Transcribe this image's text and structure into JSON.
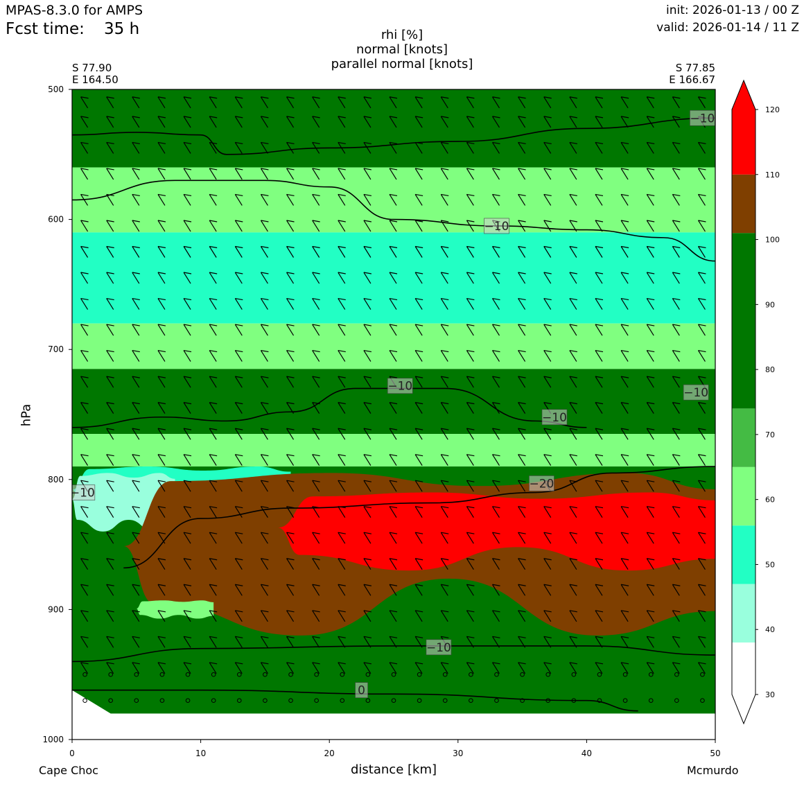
{
  "header": {
    "model": "MPAS-8.3.0 for AMPS",
    "fcst_label": "Fcst time:",
    "fcst_value": "35 h",
    "init": "init: 2026-01-13 / 00 Z",
    "valid": "valid: 2026-01-14 / 11 Z"
  },
  "titles": [
    "rhi [%]",
    "normal [knots]",
    "parallel normal [knots]"
  ],
  "endpoints": {
    "left_lat": "S 77.90",
    "left_lon": "E 164.50",
    "right_lat": "S 77.85",
    "right_lon": "E 166.67",
    "left_name": "Cape Choc",
    "right_name": "Mcmurdo"
  },
  "chart_data": {
    "type": "heatmap",
    "title": "rhi [%]",
    "xlabel": "distance [km]",
    "ylabel": "hPa",
    "xlim": [
      0,
      50
    ],
    "ylim": [
      1000,
      500
    ],
    "x_ticks": [
      "0",
      "10",
      "20",
      "30",
      "40",
      "50"
    ],
    "y_ticks": [
      "500",
      "600",
      "700",
      "800",
      "900",
      "1000"
    ],
    "colorbar": {
      "ticks": [
        "30",
        "40",
        "50",
        "60",
        "70",
        "80",
        "90",
        "100",
        "110",
        "120"
      ],
      "levels": [
        {
          "from": 30,
          "to": 38,
          "color": "#ffffff"
        },
        {
          "from": 38,
          "to": 47,
          "color": "#99ffdd"
        },
        {
          "from": 47,
          "to": 56,
          "color": "#22ffc4"
        },
        {
          "from": 56,
          "to": 65,
          "color": "#80ff80"
        },
        {
          "from": 65,
          "to": 74,
          "color": "#44bb44"
        },
        {
          "from": 74,
          "to": 101,
          "color": "#007700"
        },
        {
          "from": 101,
          "to": 110,
          "color": "#7f3f00"
        },
        {
          "from": 110,
          "to": 120,
          "color": "#ff0000"
        }
      ],
      "extend": "both"
    },
    "rhi_bands": [
      {
        "color": "#007700",
        "top_hPa": 500,
        "bottom_hPa": 560
      },
      {
        "color": "#80ff80",
        "top_hPa": 560,
        "bottom_hPa": 610
      },
      {
        "color": "#22ffc4",
        "top_hPa": 610,
        "bottom_hPa": 680
      },
      {
        "color": "#80ff80",
        "top_hPa": 680,
        "bottom_hPa": 715
      },
      {
        "color": "#007700",
        "top_hPa": 715,
        "bottom_hPa": 765
      },
      {
        "color": "#80ff80",
        "top_hPa": 765,
        "bottom_hPa": 790
      },
      {
        "color": "#007700",
        "top_hPa": 790,
        "bottom_hPa": 980
      }
    ],
    "rhi_regions": [
      {
        "color": "#22ffc4",
        "x": [
          0,
          3,
          14,
          17
        ],
        "p": [
          810,
          790,
          790,
          800
        ],
        "extent": [
          0,
          17,
          790,
          830
        ]
      },
      {
        "color": "#99ffdd",
        "x": [
          0,
          8
        ],
        "p": [
          800,
          830
        ],
        "extent": [
          0,
          8,
          795,
          840
        ]
      },
      {
        "color": "#7f3f00",
        "x": [
          4,
          50
        ],
        "p": [
          805,
          920
        ],
        "extent": [
          4,
          50,
          795,
          920
        ]
      },
      {
        "color": "#ff0000",
        "x": [
          16,
          50
        ],
        "p": [
          810,
          870
        ],
        "extent": [
          16,
          50,
          810,
          870
        ]
      },
      {
        "color": "#80ff80",
        "x": [
          5,
          11
        ],
        "p": [
          893,
          905
        ],
        "extent": [
          5,
          11,
          893,
          907
        ]
      }
    ],
    "temperature_contours": [
      {
        "label": "−10",
        "x": [
          0,
          5,
          10,
          12,
          20,
          30,
          40,
          50
        ],
        "p": [
          535,
          533,
          535,
          550,
          545,
          540,
          530,
          522
        ]
      },
      {
        "label": "−10",
        "x": [
          0,
          8,
          15,
          20,
          25,
          33,
          40,
          46,
          50
        ],
        "p": [
          585,
          570,
          570,
          575,
          600,
          605,
          608,
          614,
          632
        ]
      },
      {
        "label": "−10",
        "x": [
          0,
          7,
          12,
          17,
          22,
          29,
          36,
          40
        ],
        "p": [
          760,
          752,
          755,
          748,
          730,
          730,
          755,
          760
        ]
      },
      {
        "label": "−20",
        "x": [
          4,
          10,
          17,
          28,
          36,
          42,
          50
        ],
        "p": [
          868,
          830,
          822,
          818,
          810,
          795,
          790
        ]
      },
      {
        "label": "−10",
        "x": [
          0,
          10,
          25,
          40,
          50
        ],
        "p": [
          940,
          930,
          928,
          928,
          935
        ]
      },
      {
        "label": "0",
        "x": [
          0,
          10,
          25,
          40,
          44
        ],
        "p": [
          962,
          962,
          965,
          970,
          978
        ]
      }
    ],
    "contour_labels": [
      {
        "text": "−10",
        "x": 49,
        "p": 522
      },
      {
        "text": "−10",
        "x": 33,
        "p": 605
      },
      {
        "text": "−10",
        "x": 25.5,
        "p": 728
      },
      {
        "text": "−10",
        "x": 37.5,
        "p": 752
      },
      {
        "text": "−10",
        "x": 48.5,
        "p": 733
      },
      {
        "text": "−10",
        "x": 0.8,
        "p": 810
      },
      {
        "text": "−20",
        "x": 36.5,
        "p": 803
      },
      {
        "text": "−10",
        "x": 28.5,
        "p": 929
      },
      {
        "text": "0",
        "x": 22.5,
        "p": 962
      }
    ],
    "barbs": {
      "field": "normal [knots]",
      "x_step_km": 2,
      "levels_hPa": [
        510,
        525,
        545,
        565,
        585,
        605,
        625,
        645,
        665,
        685,
        705,
        725,
        745,
        765,
        785,
        805,
        825,
        845,
        865,
        885,
        905,
        925,
        945
      ],
      "calm_levels_hPa": [
        950,
        970
      ]
    }
  }
}
